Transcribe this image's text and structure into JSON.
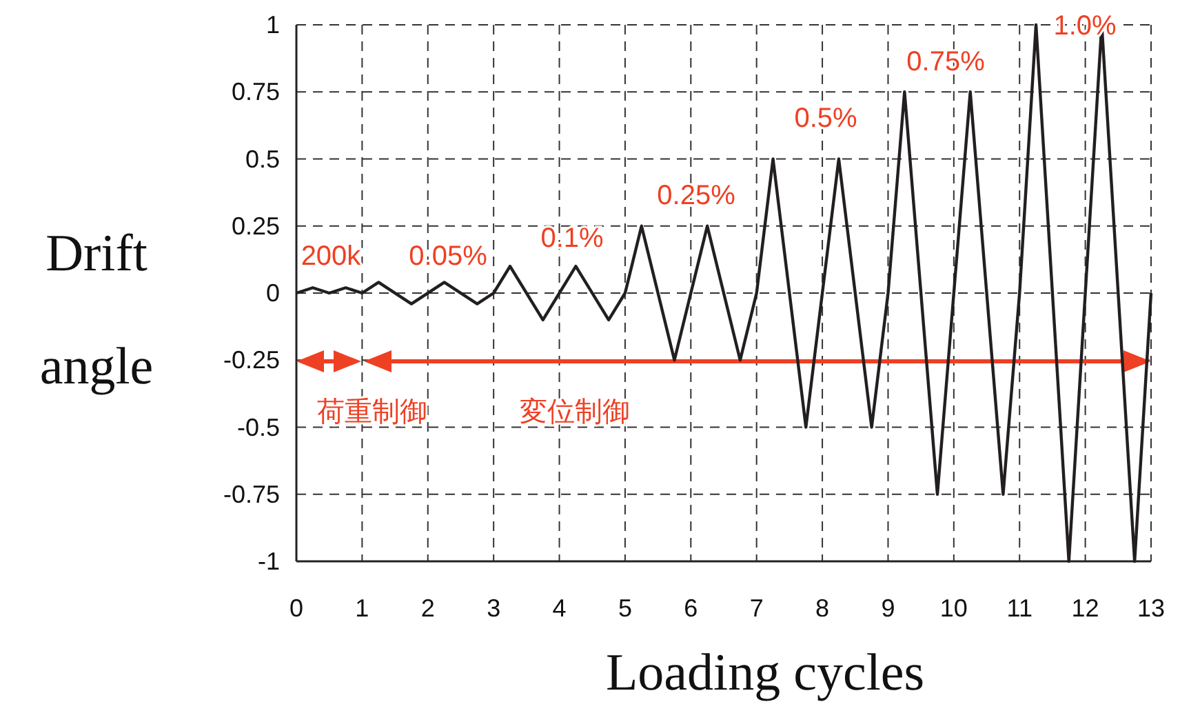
{
  "chart_data": {
    "type": "line",
    "xlabel": "Loading cycles",
    "ylabel": "Drift angle",
    "xlim": [
      0,
      13
    ],
    "ylim": [
      -1,
      1
    ],
    "xticks": [
      0,
      1,
      2,
      3,
      4,
      5,
      6,
      7,
      8,
      9,
      10,
      11,
      12,
      13
    ],
    "yticks": [
      -1,
      -0.75,
      -0.5,
      -0.25,
      0,
      0.25,
      0.5,
      0.75,
      1
    ],
    "grid": true,
    "marker": "none",
    "line_style": "solid",
    "series": [
      {
        "color": "#231f20",
        "x": [
          0,
          0.25,
          0.5,
          0.75,
          1,
          1.25,
          1.75,
          2.25,
          2.75,
          3,
          3.25,
          3.75,
          4.25,
          4.75,
          5,
          5.25,
          5.75,
          6.25,
          6.75,
          7,
          7.25,
          7.75,
          8.25,
          8.75,
          9,
          9.25,
          9.75,
          10.25,
          10.75,
          11,
          11.25,
          11.75,
          12.25,
          12.75,
          13
        ],
        "values": [
          0,
          0.02,
          0,
          0.02,
          0,
          0.04,
          -0.04,
          0.04,
          -0.04,
          0,
          0.1,
          -0.1,
          0.1,
          -0.1,
          0,
          0.25,
          -0.25,
          0.25,
          -0.25,
          0,
          0.5,
          -0.5,
          0.5,
          -0.5,
          0,
          0.75,
          -0.75,
          0.75,
          -0.75,
          0,
          1,
          -1,
          1,
          -1,
          0
        ]
      }
    ],
    "annotations": [
      "200k",
      "0.05%",
      "0.1%",
      "0.25%",
      "0.5%",
      "0.75%",
      "1.0%",
      "荷重制御",
      "変位制御"
    ]
  }
}
